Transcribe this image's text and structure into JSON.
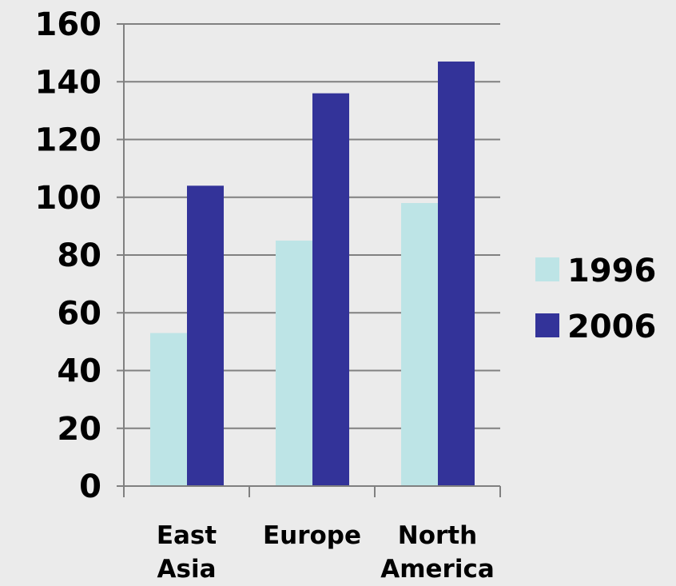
{
  "chart_data": {
    "type": "bar",
    "categories": [
      "East Asia",
      "Europe",
      "North America"
    ],
    "category_lines": [
      [
        "East",
        "Asia"
      ],
      [
        "Europe"
      ],
      [
        "North",
        "America"
      ]
    ],
    "series": [
      {
        "name": "1996",
        "values": [
          53,
          85,
          98
        ],
        "color": "#bde4e6"
      },
      {
        "name": "2006",
        "values": [
          104,
          136,
          147
        ],
        "color": "#333399"
      }
    ],
    "yticks": [
      "0",
      "20",
      "40",
      "60",
      "80",
      "100",
      "120",
      "140",
      "160"
    ],
    "ylim": [
      0,
      160
    ],
    "title": "",
    "xlabel": "",
    "ylabel": "",
    "grid": true,
    "legend_position": "right",
    "colors": {
      "background": "#ebebeb",
      "gridline": "#808080",
      "axis": "#808080",
      "text": "#000000"
    }
  }
}
